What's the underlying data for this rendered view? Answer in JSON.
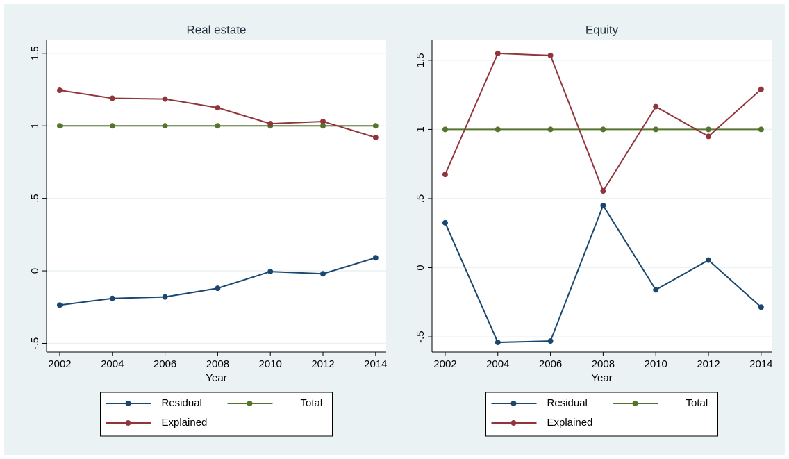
{
  "chart_data": [
    {
      "type": "line",
      "title": "Real estate",
      "x_label": "Year",
      "x": [
        2002,
        2004,
        2006,
        2008,
        2010,
        2012,
        2014
      ],
      "xlim": [
        2001.5,
        2014.4
      ],
      "xticks": [
        2002,
        2004,
        2006,
        2008,
        2010,
        2012,
        2014
      ],
      "ylim": [
        -0.56,
        1.59
      ],
      "yticks": [
        {
          "value": -0.5,
          "label": "-.5"
        },
        0,
        {
          "value": 0.5,
          "label": ".5"
        },
        1,
        1.5
      ],
      "grid": true,
      "legend": "bottom",
      "series": [
        {
          "name": "Residual",
          "color": "#1a476f",
          "values": [
            -0.236,
            -0.19,
            -0.18,
            -0.12,
            -0.005,
            -0.02,
            0.09
          ]
        },
        {
          "name": "Total",
          "color": "#55752f",
          "values": [
            1,
            1,
            1,
            1,
            1,
            1,
            1
          ]
        },
        {
          "name": "Explained",
          "color": "#90353b",
          "values": [
            1.245,
            1.19,
            1.185,
            1.125,
            1.015,
            1.03,
            0.92
          ]
        }
      ]
    },
    {
      "type": "line",
      "title": "Equity",
      "x_label": "Year",
      "x": [
        2002,
        2004,
        2006,
        2008,
        2010,
        2012,
        2014
      ],
      "xlim": [
        2001.5,
        2014.4
      ],
      "xticks": [
        2002,
        2004,
        2006,
        2008,
        2010,
        2012,
        2014
      ],
      "ylim": [
        -0.61,
        1.645
      ],
      "yticks": [
        {
          "value": -0.5,
          "label": "-.5"
        },
        0,
        {
          "value": 0.5,
          "label": ".5"
        },
        1,
        1.5
      ],
      "grid": true,
      "legend": "bottom",
      "series": [
        {
          "name": "Residual",
          "color": "#1a476f",
          "values": [
            0.325,
            -0.54,
            -0.53,
            0.45,
            -0.16,
            0.055,
            -0.285
          ]
        },
        {
          "name": "Total",
          "color": "#55752f",
          "values": [
            1,
            1,
            1,
            1,
            1,
            1,
            1
          ]
        },
        {
          "name": "Explained",
          "color": "#90353b",
          "values": [
            0.675,
            1.55,
            1.535,
            0.555,
            1.165,
            0.95,
            1.29
          ]
        }
      ]
    }
  ]
}
